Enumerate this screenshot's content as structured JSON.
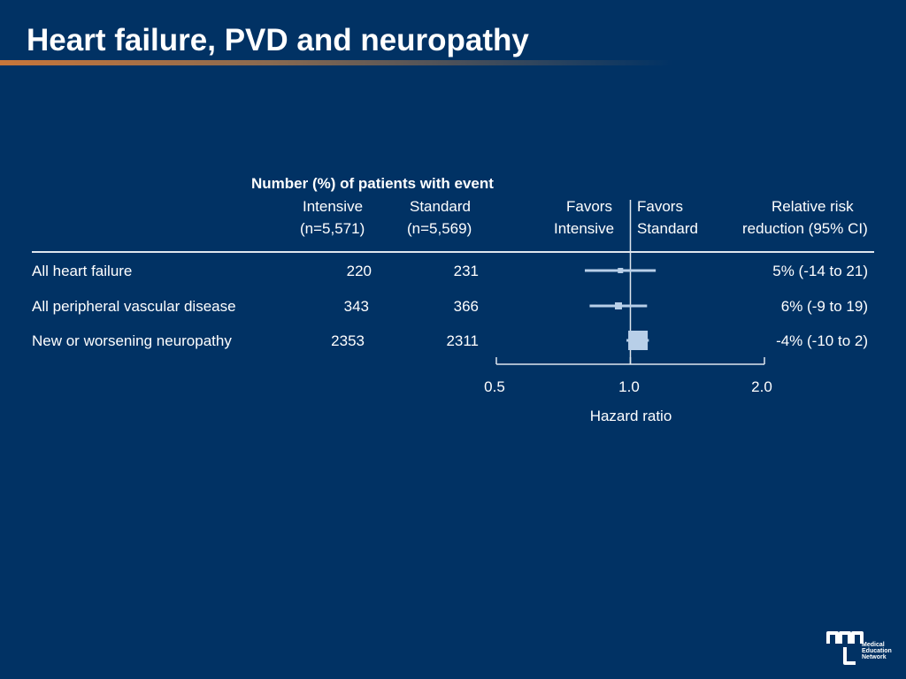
{
  "slide": {
    "title": "Heart failure, PVD and neuropathy",
    "column_group_header": "Number (%) of patients with event",
    "col_intensive": "Intensive",
    "col_intensive_n": "(n=5,571)",
    "col_standard": "Standard",
    "col_standard_n": "(n=5,569)",
    "favors_left_1": "Favors",
    "favors_left_2": "Intensive",
    "favors_right_1": "Favors",
    "favors_right_2": "Standard",
    "rrr_header_1": "Relative risk",
    "rrr_header_2": "reduction (95% CI)",
    "rows": [
      {
        "label": "All heart failure",
        "intensive": "220",
        "standard": "231",
        "rrr": "5% (-14 to 21)"
      },
      {
        "label": "All peripheral vascular disease",
        "intensive": "343",
        "standard": "366",
        "rrr": "6% (-9 to 19)"
      },
      {
        "label": "New or worsening neuropathy",
        "intensive": "2353",
        "standard": "2311",
        "rrr": "-4% (-10 to 2)"
      }
    ],
    "logo_text": [
      "Medical",
      "Education",
      "Network"
    ]
  },
  "chart_data": {
    "type": "forest",
    "xlabel": "Hazard ratio",
    "x_scale": "log",
    "xlim": [
      0.5,
      2.0
    ],
    "ticks": [
      "0.5",
      "1.0",
      "2.0"
    ],
    "tick_values": [
      0.5,
      1.0,
      2.0
    ],
    "reference_line": 1.0,
    "categories": [
      "All heart failure",
      "All peripheral vascular disease",
      "New or worsening neuropathy"
    ],
    "series": [
      {
        "hr": [
          0.95,
          0.94,
          1.04
        ],
        "ci_low": [
          0.79,
          0.81,
          0.98
        ],
        "ci_high": [
          1.14,
          1.09,
          1.1
        ]
      }
    ],
    "colors": {
      "marker": "#b8cfe8",
      "line": "#b8cfe8",
      "axis": "#dfe6ee"
    }
  }
}
